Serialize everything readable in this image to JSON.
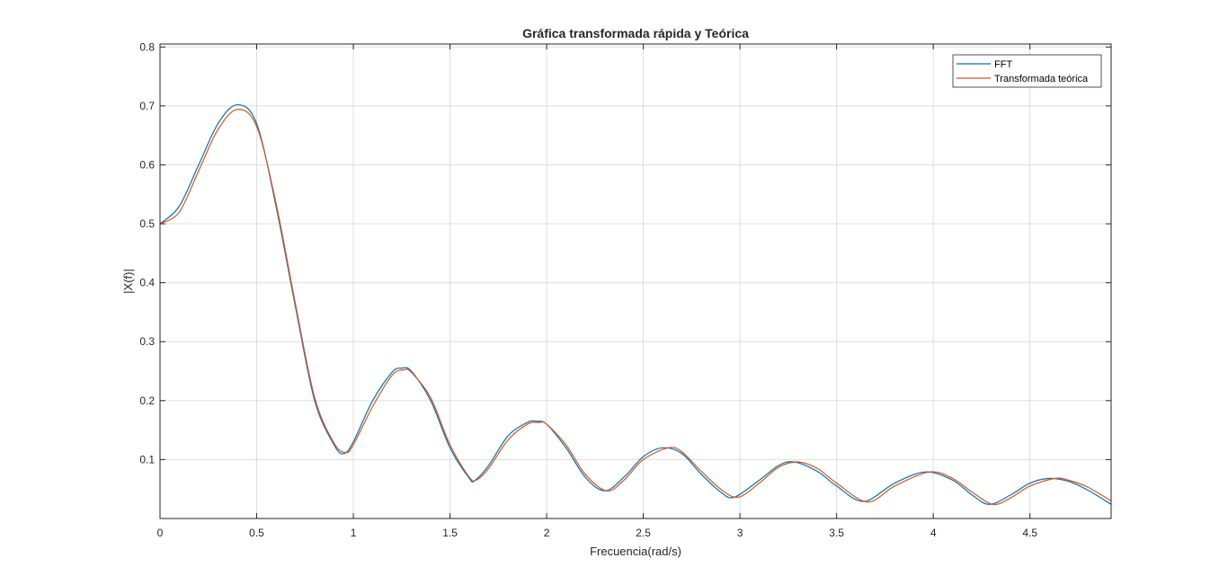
{
  "chart_data": {
    "type": "line",
    "title": "Gráfica transformada rápida y Teórica",
    "xlabel": "Frecuencia(rad/s)",
    "ylabel": "|X(f)|",
    "xlim": [
      0,
      4.92
    ],
    "ylim": [
      0.0,
      0.805
    ],
    "xticks": [
      0,
      0.5,
      1,
      1.5,
      2,
      2.5,
      3,
      3.5,
      4,
      4.5
    ],
    "xtick_labels": [
      "0",
      "0.5",
      "1",
      "1.5",
      "2",
      "2.5",
      "3",
      "3.5",
      "4",
      "4.5"
    ],
    "yticks": [
      0.1,
      0.2,
      0.3,
      0.4,
      0.5,
      0.6,
      0.7,
      0.8
    ],
    "ytick_labels": [
      "0.1",
      "0.2",
      "0.3",
      "0.4",
      "0.5",
      "0.6",
      "0.7",
      "0.8"
    ],
    "grid": true,
    "legend_position": "top-right",
    "series": [
      {
        "name": "FFT",
        "color": "#0072BD",
        "x": [
          0,
          0.1,
          0.2,
          0.3,
          0.4,
          0.5,
          0.6,
          0.7,
          0.8,
          0.9,
          0.95,
          1.0,
          1.1,
          1.2,
          1.25,
          1.3,
          1.4,
          1.5,
          1.6,
          1.63,
          1.7,
          1.8,
          1.9,
          1.95,
          2.0,
          2.1,
          2.2,
          2.3,
          2.4,
          2.5,
          2.6,
          2.7,
          2.8,
          2.9,
          2.97,
          3.1,
          3.2,
          3.28,
          3.4,
          3.5,
          3.64,
          3.8,
          3.96,
          4.1,
          4.2,
          4.29,
          4.4,
          4.5,
          4.6,
          4.7,
          4.8,
          4.92
        ],
        "y": [
          0.5,
          0.53,
          0.6,
          0.67,
          0.702,
          0.67,
          0.53,
          0.36,
          0.2,
          0.125,
          0.11,
          0.13,
          0.2,
          0.248,
          0.255,
          0.25,
          0.2,
          0.12,
          0.068,
          0.065,
          0.09,
          0.14,
          0.163,
          0.165,
          0.16,
          0.12,
          0.07,
          0.047,
          0.07,
          0.105,
          0.12,
          0.11,
          0.075,
          0.045,
          0.036,
          0.065,
          0.09,
          0.096,
          0.08,
          0.055,
          0.029,
          0.06,
          0.079,
          0.065,
          0.04,
          0.024,
          0.04,
          0.06,
          0.068,
          0.063,
          0.048,
          0.024
        ]
      },
      {
        "name": "Transformada teórica",
        "color": "#D95319",
        "x": [
          0,
          0.1,
          0.2,
          0.3,
          0.4,
          0.5,
          0.6,
          0.7,
          0.8,
          0.9,
          0.96,
          1.0,
          1.1,
          1.2,
          1.26,
          1.3,
          1.4,
          1.5,
          1.6,
          1.64,
          1.7,
          1.8,
          1.9,
          1.96,
          2.0,
          2.1,
          2.2,
          2.31,
          2.4,
          2.5,
          2.63,
          2.7,
          2.8,
          2.9,
          2.99,
          3.1,
          3.2,
          3.3,
          3.4,
          3.5,
          3.66,
          3.8,
          3.98,
          4.1,
          4.2,
          4.31,
          4.4,
          4.5,
          4.63,
          4.7,
          4.8,
          4.92
        ],
        "y": [
          0.5,
          0.52,
          0.59,
          0.66,
          0.694,
          0.665,
          0.535,
          0.365,
          0.205,
          0.128,
          0.112,
          0.125,
          0.19,
          0.243,
          0.252,
          0.248,
          0.205,
          0.125,
          0.07,
          0.066,
          0.085,
          0.133,
          0.16,
          0.163,
          0.16,
          0.125,
          0.075,
          0.047,
          0.065,
          0.1,
          0.12,
          0.113,
          0.08,
          0.05,
          0.036,
          0.06,
          0.087,
          0.096,
          0.085,
          0.06,
          0.028,
          0.055,
          0.079,
          0.068,
          0.045,
          0.024,
          0.035,
          0.055,
          0.068,
          0.065,
          0.053,
          0.03
        ]
      }
    ]
  }
}
